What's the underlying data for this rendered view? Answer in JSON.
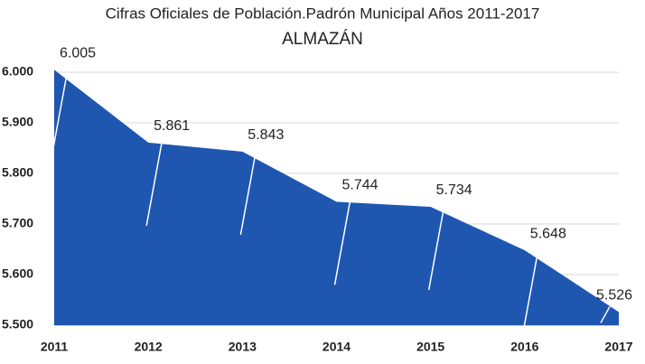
{
  "chart_data": {
    "type": "area",
    "title": "Cifras Oficiales de Población.Padrón Municipal Años 2011-2017",
    "subtitle": "ALMAZÁN",
    "categories": [
      "2011",
      "2012",
      "2013",
      "2014",
      "2015",
      "2016",
      "2017"
    ],
    "values": [
      6005,
      5861,
      5843,
      5744,
      5734,
      5648,
      5526
    ],
    "value_labels": [
      "6.005",
      "5.861",
      "5.843",
      "5.744",
      "5.734",
      "5.648",
      "5.526"
    ],
    "color": "#1f57b0",
    "ylim": [
      5500,
      6000
    ],
    "yticks": [
      {
        "value": 5500,
        "label": "5.500"
      },
      {
        "value": 5600,
        "label": "5.600"
      },
      {
        "value": 5700,
        "label": "5.700"
      },
      {
        "value": 5800,
        "label": "5.800"
      },
      {
        "value": 5900,
        "label": "5.900"
      },
      {
        "value": 6000,
        "label": "6.000"
      }
    ],
    "grid": true
  }
}
